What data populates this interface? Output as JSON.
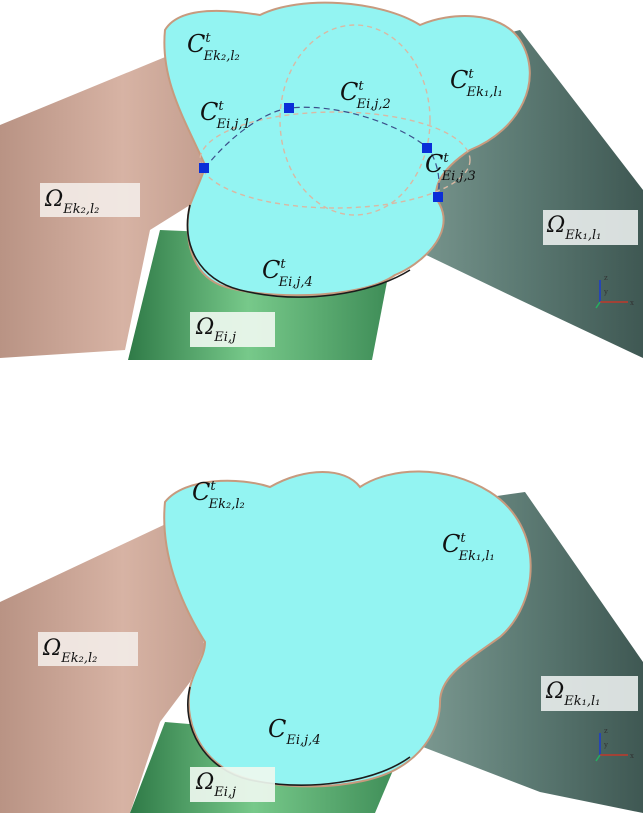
{
  "colors": {
    "cap": "#93f4f2",
    "cap_outline": "#c79a7e",
    "tube_left": "#cfa99a",
    "tube_right": "#5f7d76",
    "tube_bottom": "#4e9c63",
    "node": "#0a2ed8",
    "dash": "#d9b9a4",
    "dash_inner": "#3b4f8a"
  },
  "panels": [
    {
      "labels": {
        "cap_left": {
          "main": "C",
          "sup": "t",
          "sub": "Ek₂,l₂"
        },
        "cap_right": {
          "main": "C",
          "sup": "t",
          "sub": "Ek₁,l₁"
        },
        "curve_1": {
          "main": "C",
          "sup": "t",
          "sub": "Ei,j,1"
        },
        "curve_2": {
          "main": "C",
          "sup": "t",
          "sub": "Ei,j,2"
        },
        "curve_3": {
          "main": "C",
          "sup": "t",
          "sub": "Ei,j,3"
        },
        "curve_4": {
          "main": "C",
          "sup": "t",
          "sub": "Ei,j,4"
        },
        "omega_left": {
          "main": "Ω",
          "sub": "Ek₂,l₂"
        },
        "omega_right": {
          "main": "Ω",
          "sub": "Ek₁,l₁"
        },
        "omega_bottom": {
          "main": "Ω",
          "sub": "Ei,j"
        }
      }
    },
    {
      "labels": {
        "cap_left": {
          "main": "C",
          "sup": "t",
          "sub": "Ek₂,l₂"
        },
        "cap_right": {
          "main": "C",
          "sup": "t",
          "sub": "Ek₁,l₁"
        },
        "curve_4": {
          "main": "C",
          "sub": "Ei,j,4"
        },
        "omega_left": {
          "main": "Ω",
          "sub": "Ek₂,l₂"
        },
        "omega_right": {
          "main": "Ω",
          "sub": "Ek₁,l₁"
        },
        "omega_bottom": {
          "main": "Ω",
          "sub": "Ei,j"
        }
      }
    }
  ],
  "axis_triad": {
    "x": "x",
    "y": "y",
    "z": "z"
  }
}
